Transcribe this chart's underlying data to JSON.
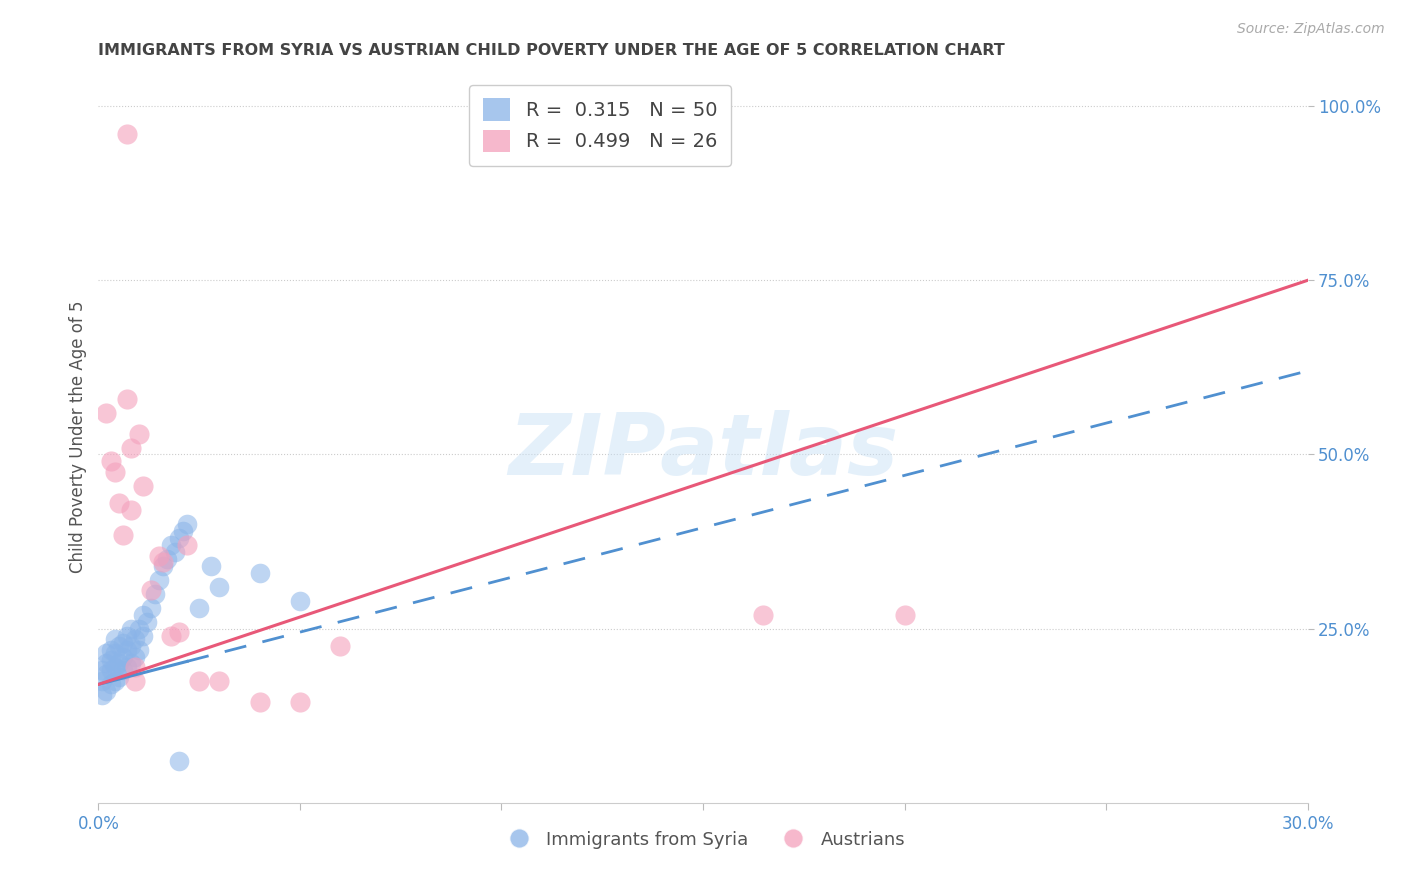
{
  "title": "IMMIGRANTS FROM SYRIA VS AUSTRIAN CHILD POVERTY UNDER THE AGE OF 5 CORRELATION CHART",
  "source": "Source: ZipAtlas.com",
  "ylabel": "Child Poverty Under the Age of 5",
  "xlim": [
    0.0,
    0.3
  ],
  "ylim": [
    0.0,
    1.05
  ],
  "blue_R": "0.315",
  "blue_N": "50",
  "pink_R": "0.499",
  "pink_N": "26",
  "blue_scatter_color": "#8ab4e8",
  "pink_scatter_color": "#f4a0bc",
  "blue_line_color": "#5090d0",
  "pink_line_color": "#e85878",
  "axis_label_color": "#5090d0",
  "title_color": "#444444",
  "grid_color": "#cccccc",
  "background_color": "#ffffff",
  "watermark_color": "#c5dff5",
  "legend_label_blue": "Immigrants from Syria",
  "legend_label_pink": "Austrians",
  "blue_line_x0": 0.0,
  "blue_line_y0": 0.17,
  "blue_line_x1": 0.3,
  "blue_line_y1": 0.62,
  "pink_line_x0": 0.0,
  "pink_line_y0": 0.17,
  "pink_line_x1": 0.3,
  "pink_line_y1": 0.75,
  "blue_scatter_x": [
    0.001,
    0.001,
    0.001,
    0.002,
    0.002,
    0.002,
    0.002,
    0.003,
    0.003,
    0.003,
    0.003,
    0.004,
    0.004,
    0.004,
    0.004,
    0.005,
    0.005,
    0.005,
    0.006,
    0.006,
    0.006,
    0.007,
    0.007,
    0.007,
    0.008,
    0.008,
    0.008,
    0.009,
    0.009,
    0.01,
    0.01,
    0.011,
    0.011,
    0.012,
    0.013,
    0.014,
    0.015,
    0.016,
    0.017,
    0.018,
    0.019,
    0.02,
    0.021,
    0.022,
    0.025,
    0.028,
    0.03,
    0.04,
    0.05,
    0.02
  ],
  "blue_scatter_y": [
    0.155,
    0.175,
    0.19,
    0.16,
    0.185,
    0.2,
    0.215,
    0.17,
    0.19,
    0.205,
    0.22,
    0.175,
    0.195,
    0.215,
    0.235,
    0.18,
    0.2,
    0.225,
    0.19,
    0.21,
    0.23,
    0.195,
    0.22,
    0.24,
    0.2,
    0.225,
    0.25,
    0.21,
    0.235,
    0.22,
    0.25,
    0.24,
    0.27,
    0.26,
    0.28,
    0.3,
    0.32,
    0.34,
    0.35,
    0.37,
    0.36,
    0.38,
    0.39,
    0.4,
    0.28,
    0.34,
    0.31,
    0.33,
    0.29,
    0.06
  ],
  "pink_scatter_x": [
    0.002,
    0.003,
    0.004,
    0.005,
    0.006,
    0.007,
    0.008,
    0.008,
    0.009,
    0.01,
    0.011,
    0.013,
    0.015,
    0.016,
    0.02,
    0.022,
    0.025,
    0.03,
    0.04,
    0.05,
    0.06,
    0.165,
    0.2,
    0.007,
    0.009,
    0.018
  ],
  "pink_scatter_y": [
    0.56,
    0.49,
    0.475,
    0.43,
    0.385,
    0.58,
    0.42,
    0.51,
    0.175,
    0.53,
    0.455,
    0.305,
    0.355,
    0.345,
    0.245,
    0.37,
    0.175,
    0.175,
    0.145,
    0.145,
    0.225,
    0.27,
    0.27,
    0.96,
    0.195,
    0.24
  ]
}
